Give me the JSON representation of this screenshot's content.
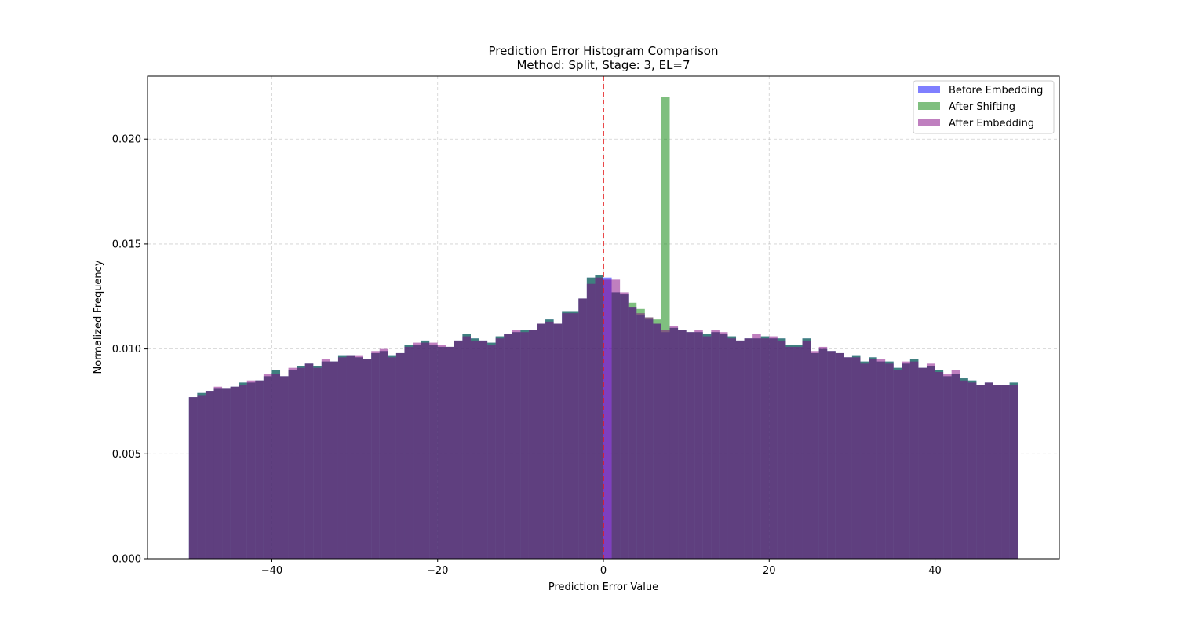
{
  "chart_data": {
    "type": "bar",
    "title": "Prediction Error Histogram Comparison",
    "subtitle": "Method: Split, Stage: 3, EL=7",
    "xlabel": "Prediction Error Value",
    "ylabel": "Normalized Frequency",
    "xlim": [
      -55,
      55
    ],
    "ylim": [
      0,
      0.023
    ],
    "x_ticks": [
      -40,
      -20,
      0,
      20,
      40
    ],
    "y_ticks": [
      0.0,
      0.005,
      0.01,
      0.015,
      0.02
    ],
    "x_tick_labels": [
      "−40",
      "−20",
      "0",
      "20",
      "40"
    ],
    "y_tick_labels": [
      "0.000",
      "0.005",
      "0.010",
      "0.015",
      "0.020"
    ],
    "grid": true,
    "legend_position": "top-right",
    "bin_edges_start": -50,
    "bin_width": 1,
    "series": [
      {
        "name": "Before Embedding",
        "color": "#0000ff",
        "opacity": 0.5,
        "values": [
          0.0077,
          0.0079,
          0.008,
          0.0081,
          0.0081,
          0.0082,
          0.0084,
          0.0084,
          0.0085,
          0.0087,
          0.009,
          0.0087,
          0.009,
          0.0092,
          0.0093,
          0.0092,
          0.0094,
          0.0094,
          0.0097,
          0.0097,
          0.0096,
          0.0095,
          0.0098,
          0.0099,
          0.0097,
          0.0098,
          0.0102,
          0.0102,
          0.0104,
          0.0102,
          0.0101,
          0.0101,
          0.0104,
          0.0107,
          0.0105,
          0.0104,
          0.0103,
          0.0106,
          0.0107,
          0.0108,
          0.0109,
          0.0109,
          0.0112,
          0.0114,
          0.0112,
          0.0118,
          0.0118,
          0.0124,
          0.0134,
          0.0135,
          0.0134,
          0.0127,
          0.0126,
          0.012,
          0.0116,
          0.0114,
          0.0112,
          0.0108,
          0.011,
          0.0109,
          0.0108,
          0.0108,
          0.0107,
          0.0108,
          0.0107,
          0.0106,
          0.0104,
          0.0105,
          0.0105,
          0.0106,
          0.0105,
          0.0105,
          0.0102,
          0.0102,
          0.0105,
          0.0098,
          0.01,
          0.0099,
          0.0098,
          0.0096,
          0.0097,
          0.0094,
          0.0096,
          0.0094,
          0.0094,
          0.0091,
          0.0093,
          0.0095,
          0.0091,
          0.0092,
          0.009,
          0.0087,
          0.0088,
          0.0086,
          0.0085,
          0.0083,
          0.0084,
          0.0083,
          0.0083,
          0.0084
        ]
      },
      {
        "name": "After Shifting",
        "color": "#008000",
        "opacity": 0.5,
        "values": [
          0.0077,
          0.0079,
          0.008,
          0.0081,
          0.0081,
          0.0082,
          0.0084,
          0.0084,
          0.0085,
          0.0087,
          0.009,
          0.0087,
          0.009,
          0.0092,
          0.0093,
          0.0092,
          0.0094,
          0.0094,
          0.0097,
          0.0097,
          0.0096,
          0.0095,
          0.0098,
          0.0099,
          0.0097,
          0.0098,
          0.0102,
          0.0102,
          0.0104,
          0.0102,
          0.0101,
          0.0101,
          0.0104,
          0.0107,
          0.0105,
          0.0104,
          0.0103,
          0.0106,
          0.0107,
          0.0108,
          0.0109,
          0.0109,
          0.0112,
          0.0114,
          0.0112,
          0.0118,
          0.0118,
          0.0124,
          0.0134,
          0.0135,
          0.0,
          0.0127,
          0.0126,
          0.0122,
          0.0119,
          0.0115,
          0.0114,
          0.022,
          0.011,
          0.0109,
          0.0108,
          0.0108,
          0.0107,
          0.0108,
          0.0107,
          0.0106,
          0.0104,
          0.0105,
          0.0105,
          0.0106,
          0.0105,
          0.0105,
          0.0102,
          0.0102,
          0.0105,
          0.0098,
          0.01,
          0.0099,
          0.0098,
          0.0096,
          0.0097,
          0.0094,
          0.0096,
          0.0094,
          0.0094,
          0.0091,
          0.0093,
          0.0095,
          0.0091,
          0.0092,
          0.009,
          0.0087,
          0.0088,
          0.0086,
          0.0085,
          0.0083,
          0.0084,
          0.0083,
          0.0083,
          0.0084
        ]
      },
      {
        "name": "After Embedding",
        "color": "#800080",
        "opacity": 0.5,
        "values": [
          0.0077,
          0.0078,
          0.008,
          0.0082,
          0.0081,
          0.0082,
          0.0083,
          0.0085,
          0.0085,
          0.0088,
          0.0088,
          0.0087,
          0.0091,
          0.0091,
          0.0093,
          0.0091,
          0.0095,
          0.0094,
          0.0096,
          0.0097,
          0.0097,
          0.0095,
          0.0099,
          0.01,
          0.0096,
          0.0098,
          0.0101,
          0.0103,
          0.0103,
          0.0103,
          0.0102,
          0.0101,
          0.0104,
          0.0106,
          0.0104,
          0.0104,
          0.0102,
          0.0105,
          0.0107,
          0.0109,
          0.0108,
          0.0109,
          0.0112,
          0.0113,
          0.0112,
          0.0117,
          0.0117,
          0.0124,
          0.0131,
          0.0134,
          0.0133,
          0.0133,
          0.0127,
          0.012,
          0.0117,
          0.0115,
          0.0112,
          0.0109,
          0.0111,
          0.0109,
          0.0108,
          0.0109,
          0.0106,
          0.0109,
          0.0108,
          0.0105,
          0.0104,
          0.0105,
          0.0107,
          0.0105,
          0.0106,
          0.0104,
          0.0101,
          0.0101,
          0.0104,
          0.0099,
          0.0101,
          0.0099,
          0.0098,
          0.0096,
          0.0096,
          0.0093,
          0.0095,
          0.0095,
          0.0093,
          0.009,
          0.0094,
          0.0094,
          0.0091,
          0.0093,
          0.0089,
          0.0088,
          0.009,
          0.0085,
          0.0084,
          0.0083,
          0.0084,
          0.0083,
          0.0083,
          0.0083
        ]
      }
    ],
    "vertical_line": {
      "x": 0,
      "color": "#e41a1c",
      "style": "dashed"
    }
  }
}
